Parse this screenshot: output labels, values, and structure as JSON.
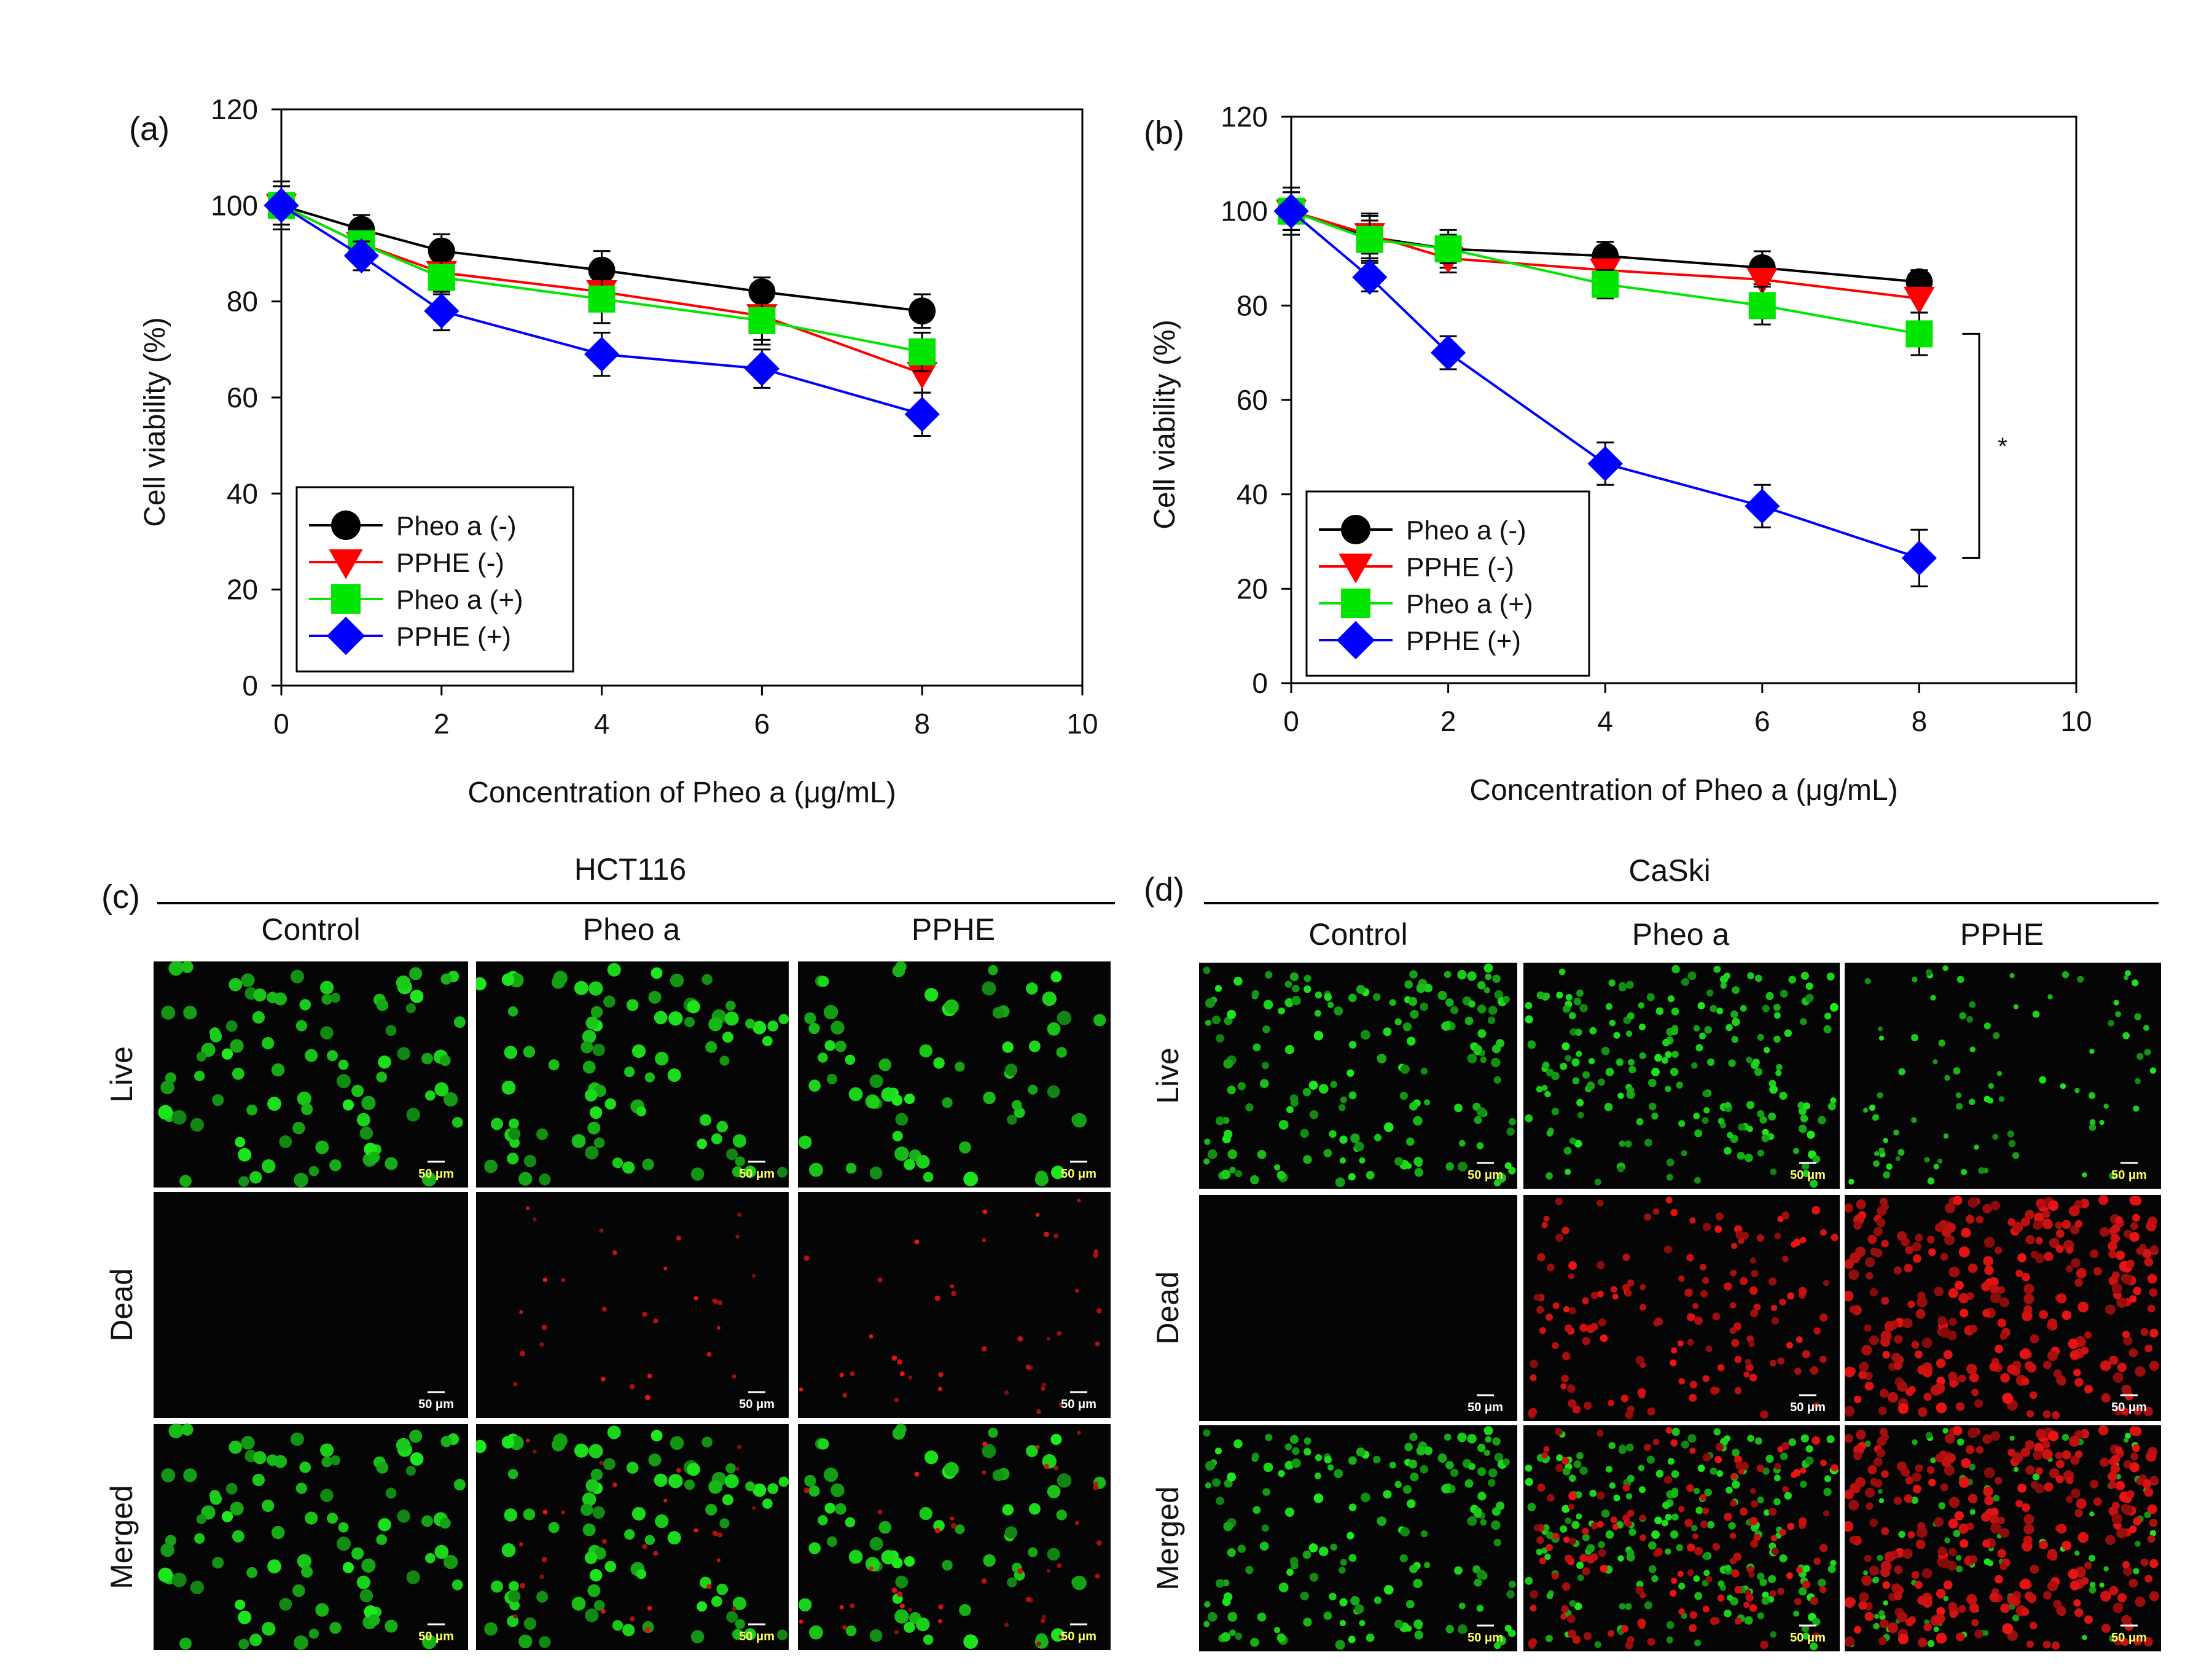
{
  "chart_data": [
    {
      "panel": "(a)",
      "type": "line",
      "xlabel": "Concentration of Pheo a (μg/mL)",
      "ylabel": "Cell viability (%)",
      "xlim": [
        0,
        10
      ],
      "ylim": [
        0,
        120
      ],
      "xticks": [
        0,
        2,
        4,
        6,
        8,
        10
      ],
      "yticks": [
        0,
        20,
        40,
        60,
        80,
        100,
        120
      ],
      "legend_position": "bottom-left",
      "series": [
        {
          "name": "Pheo a (-)",
          "color": "#000000",
          "marker": "circle",
          "x": [
            0,
            1,
            2,
            4,
            6,
            8
          ],
          "y": [
            100,
            95,
            90.5,
            86.5,
            82,
            78
          ],
          "err": [
            5,
            3,
            3.5,
            4,
            3,
            3.5
          ]
        },
        {
          "name": "PPHE (-)",
          "color": "#ff0000",
          "marker": "triangle-down",
          "x": [
            0,
            1,
            2,
            4,
            6,
            8
          ],
          "y": [
            100,
            92,
            86,
            82,
            77,
            65
          ],
          "err": [
            4,
            3,
            3,
            4,
            6,
            4
          ]
        },
        {
          "name": "Pheo a (+)",
          "color": "#00e600",
          "marker": "square",
          "x": [
            0,
            1,
            2,
            4,
            6,
            8
          ],
          "y": [
            100,
            92,
            85,
            80.5,
            76,
            69.5
          ],
          "err": [
            4,
            3,
            3.5,
            5,
            4,
            4
          ]
        },
        {
          "name": "PPHE (+)",
          "color": "#0000ff",
          "marker": "diamond",
          "x": [
            0,
            1,
            2,
            4,
            6,
            8
          ],
          "y": [
            100,
            89.5,
            78,
            69,
            66,
            56.5
          ],
          "err": [
            4,
            3,
            4,
            4.5,
            4,
            4.5
          ]
        }
      ]
    },
    {
      "panel": "(b)",
      "type": "line",
      "xlabel": "Concentration of Pheo a (μg/mL)",
      "ylabel": "Cell viability (%)",
      "xlim": [
        0,
        10
      ],
      "ylim": [
        0,
        120
      ],
      "xticks": [
        0,
        2,
        4,
        6,
        8,
        10
      ],
      "yticks": [
        0,
        20,
        40,
        60,
        80,
        100,
        120
      ],
      "legend_position": "bottom-left",
      "annotation": "*",
      "series": [
        {
          "name": "Pheo a (-)",
          "color": "#000000",
          "marker": "circle",
          "x": [
            0,
            1,
            2,
            4,
            6,
            8
          ],
          "y": [
            100,
            94.5,
            92,
            90.5,
            88,
            85
          ],
          "err": [
            5,
            5,
            4,
            3,
            3.5,
            2.5
          ]
        },
        {
          "name": "PPHE (-)",
          "color": "#ff0000",
          "marker": "triangle-down",
          "x": [
            0,
            1,
            2,
            4,
            6,
            8
          ],
          "y": [
            100,
            95,
            90,
            87.5,
            85.5,
            81.5
          ],
          "err": [
            4,
            4,
            3,
            4,
            4,
            3
          ]
        },
        {
          "name": "Pheo a (+)",
          "color": "#00e600",
          "marker": "square",
          "x": [
            0,
            1,
            2,
            4,
            6,
            8
          ],
          "y": [
            100,
            94,
            92,
            84.5,
            80,
            74
          ],
          "err": [
            4,
            4,
            3,
            3,
            4,
            4.5
          ]
        },
        {
          "name": "PPHE (+)",
          "color": "#0000ff",
          "marker": "diamond",
          "x": [
            0,
            1,
            2,
            4,
            6,
            8
          ],
          "y": [
            100,
            86,
            70,
            46.5,
            37.5,
            26.5
          ],
          "err": [
            4,
            3,
            3.5,
            4.5,
            4.5,
            6
          ]
        }
      ]
    }
  ],
  "micrographs": [
    {
      "panel": "(c)",
      "cell_line": "HCT116",
      "columns": [
        "Control",
        "Pheo a",
        "PPHE"
      ],
      "rows": [
        "Live",
        "Dead",
        "Merged"
      ],
      "scale_bar": "50 μm"
    },
    {
      "panel": "(d)",
      "cell_line": "CaSki",
      "columns": [
        "Control",
        "Pheo a",
        "PPHE"
      ],
      "rows": [
        "Live",
        "Dead",
        "Merged"
      ],
      "scale_bar": "50 μm"
    }
  ]
}
